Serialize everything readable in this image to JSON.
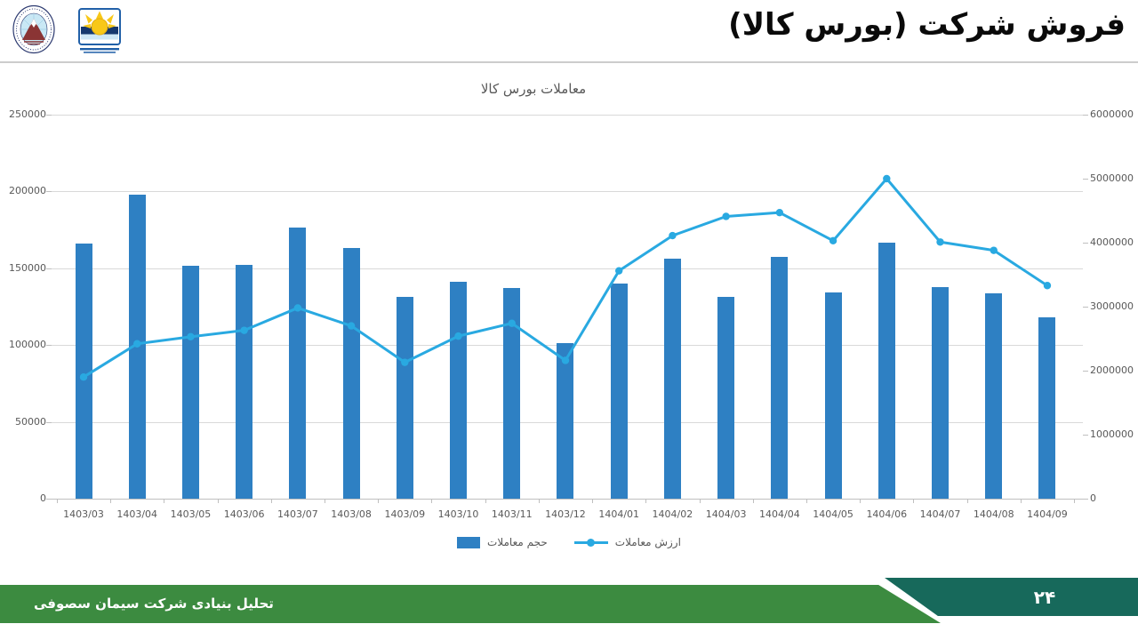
{
  "slide": {
    "title": "فروش شرکت (بورس کالا)",
    "footer_caption": "تحلیل بنیادی شرکت سیمان سصوفی",
    "page_number": "۲۴"
  },
  "colors": {
    "footer_green": "#3c8b40",
    "footer_teal": "#17695b",
    "bar_blue": "#2e80c3",
    "line_cyan": "#29a9e1"
  },
  "chart_data": {
    "type": "bar",
    "combo": "bar+line, secondary right axis",
    "title": "معاملات بورس کالا",
    "categories": [
      "1403/03",
      "1403/04",
      "1403/05",
      "1403/06",
      "1403/07",
      "1403/08",
      "1403/09",
      "1403/10",
      "1403/11",
      "1403/12",
      "1404/01",
      "1404/02",
      "1404/03",
      "1404/04",
      "1404/05",
      "1404/06",
      "1404/07",
      "1404/08",
      "1404/09"
    ],
    "series": [
      {
        "name": "حجم معاملات",
        "type": "bar",
        "axis": "left",
        "color": "#2e80c3",
        "values": [
          166000,
          198000,
          151500,
          152000,
          176500,
          163000,
          131500,
          141000,
          137000,
          101000,
          140000,
          156500,
          131500,
          157500,
          134500,
          166500,
          137500,
          133500,
          118000
        ]
      },
      {
        "name": "ارزش معاملات",
        "type": "line",
        "axis": "right",
        "color": "#29a9e1",
        "values": [
          1900000,
          2420000,
          2530000,
          2630000,
          2980000,
          2700000,
          2130000,
          2540000,
          2740000,
          2160000,
          3560000,
          4110000,
          4410000,
          4470000,
          4030000,
          5000000,
          4010000,
          3880000,
          3330000
        ]
      }
    ],
    "left_axis": {
      "min": 0,
      "max": 250000,
      "step": 50000
    },
    "right_axis": {
      "min": 0,
      "max": 6000000,
      "step": 1000000
    },
    "grid": true,
    "legend_position": "bottom"
  }
}
